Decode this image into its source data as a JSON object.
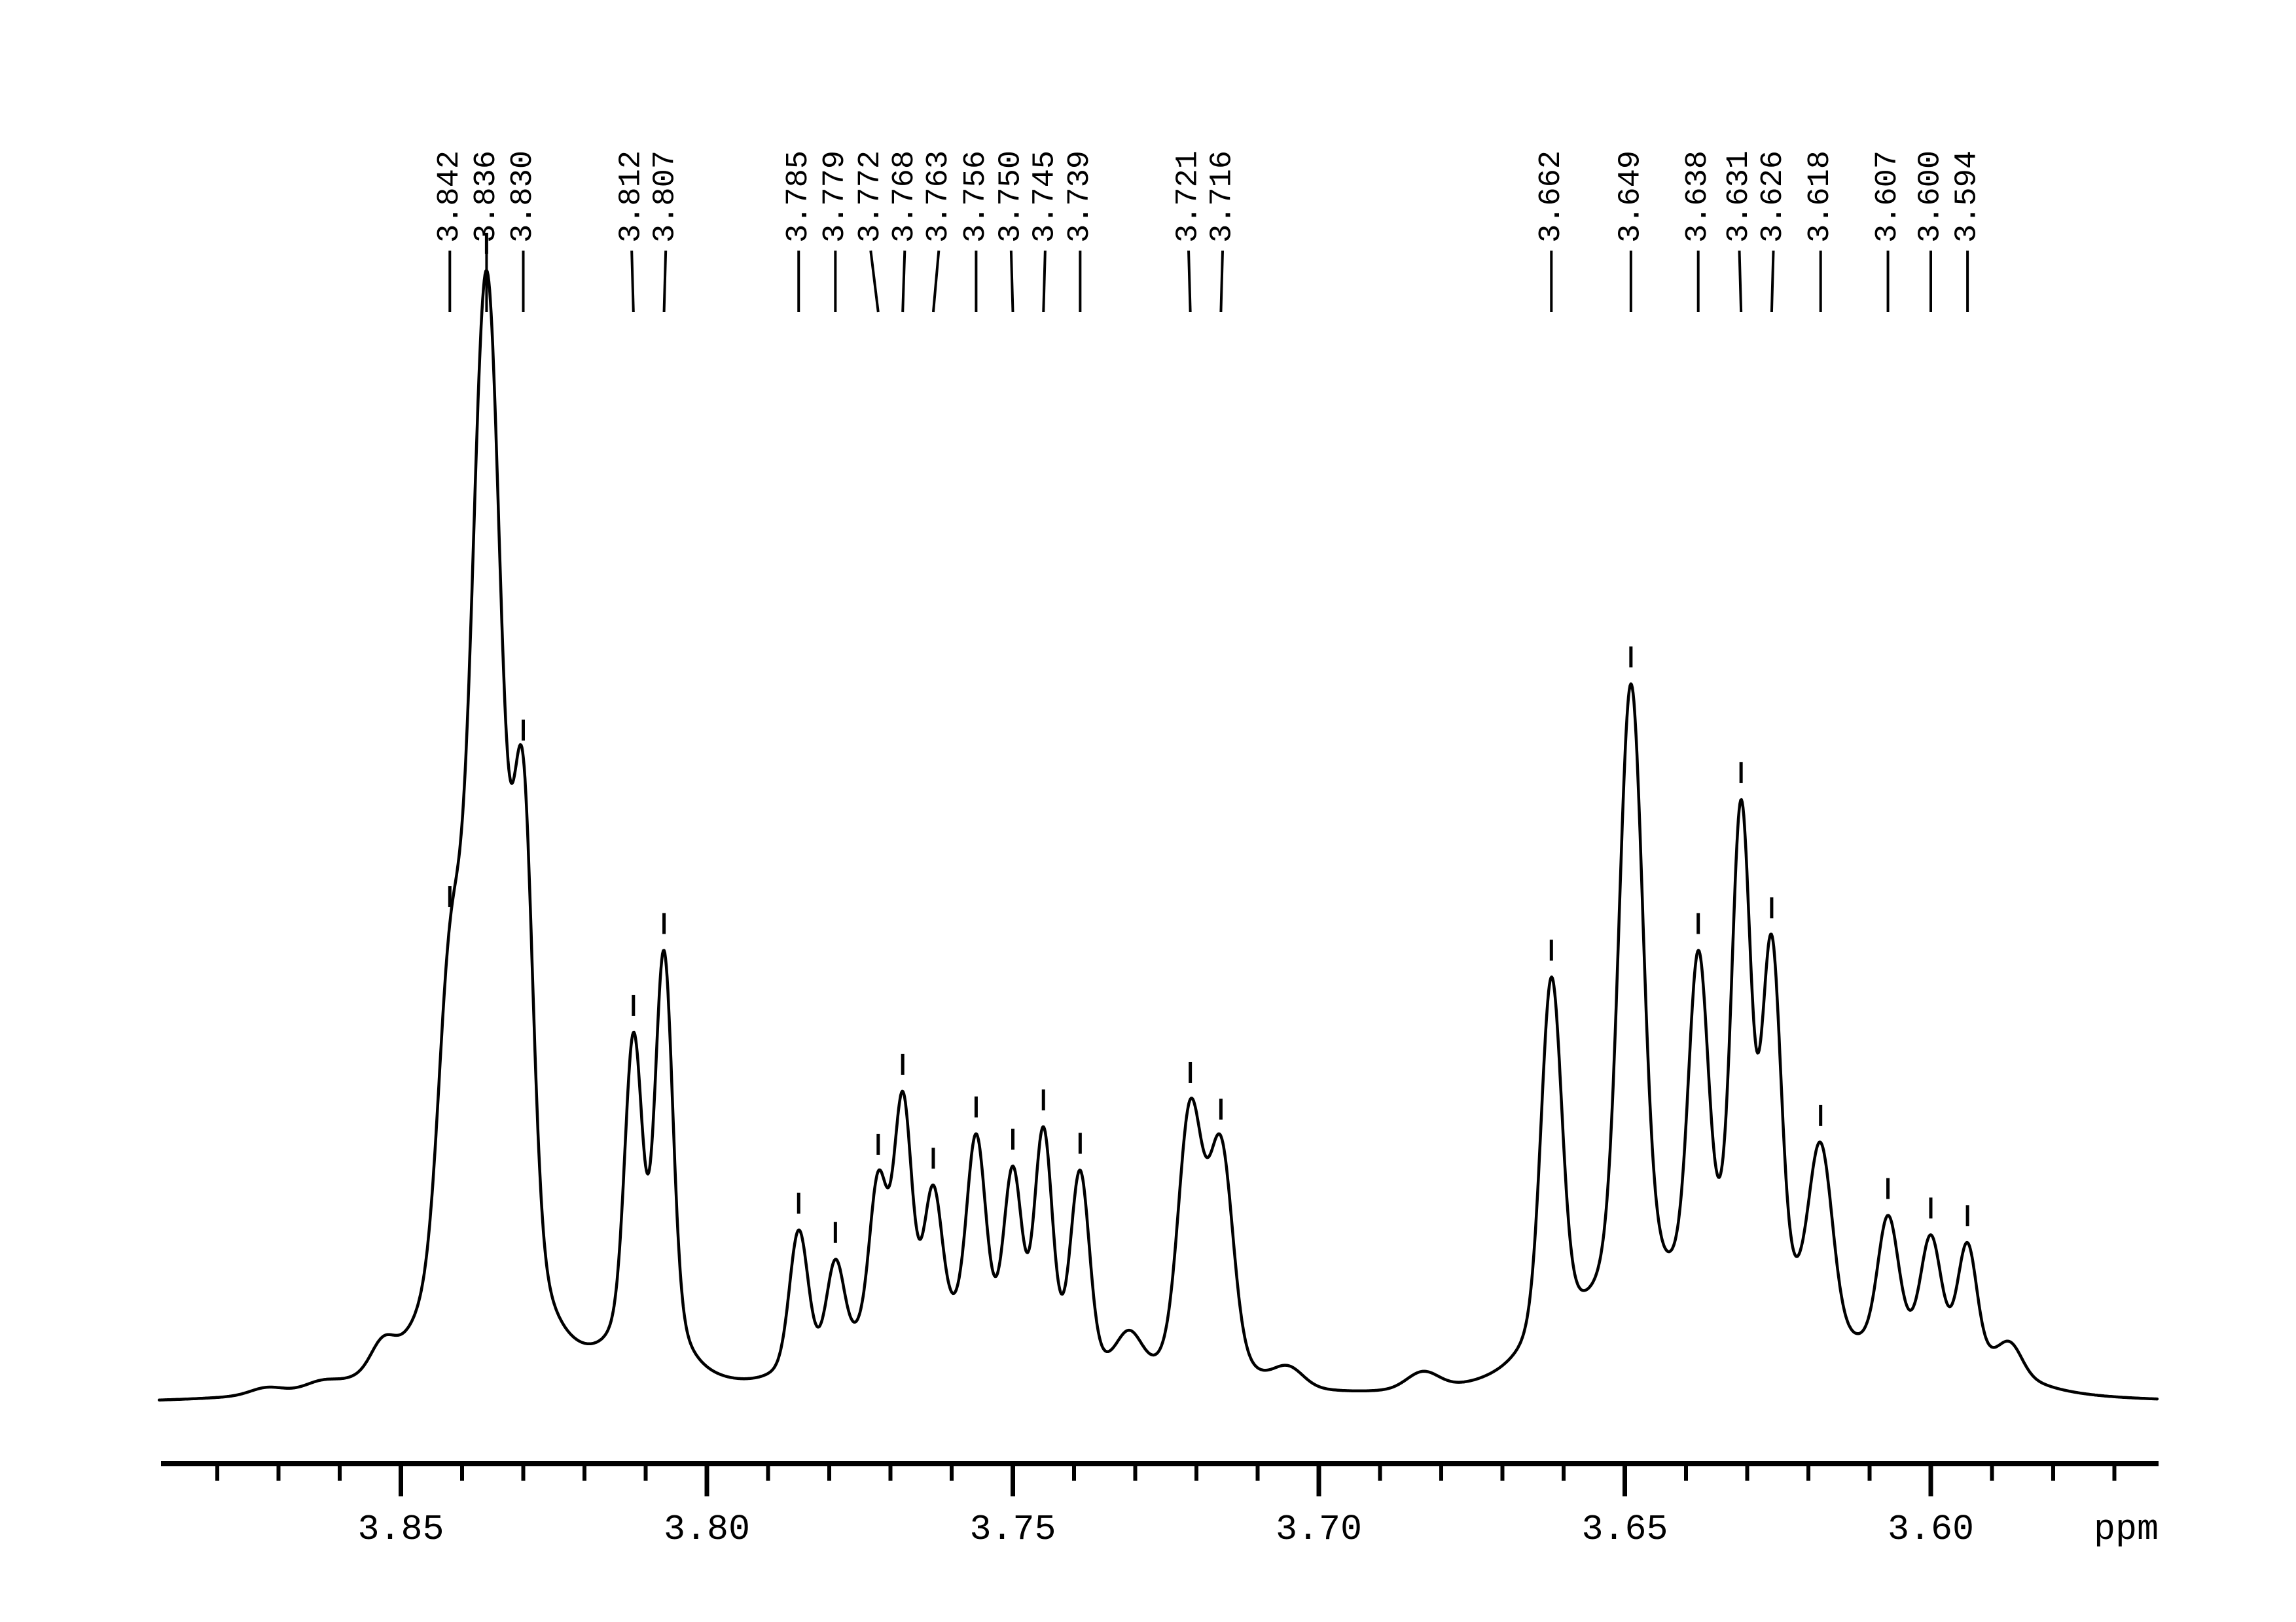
{
  "page": {
    "background": "#ffffff",
    "foreground": "#000000"
  },
  "chart_data": {
    "type": "line",
    "title": "",
    "xlabel": "ppm",
    "ylabel": "",
    "grid": false,
    "legend": null,
    "line_color": "#000000",
    "x_axis": {
      "unit": "ppm",
      "direction": "values-decrease-to-right",
      "min": 3.562,
      "max": 3.89,
      "major_ticks": [
        3.85,
        3.8,
        3.75,
        3.7,
        3.65,
        3.6
      ],
      "major_tick_labels": [
        "3.85",
        "3.80",
        "3.75",
        "3.70",
        "3.65",
        "3.60"
      ],
      "minor_tick_step": 0.01
    },
    "y_axis": {
      "shown": false,
      "range": [
        0,
        1.08
      ]
    },
    "peaks": [
      {
        "label": "3.842",
        "ppm": 3.842,
        "rel_intensity": 0.29,
        "hwhm_ppm": 0.0022
      },
      {
        "label": "3.836",
        "ppm": 3.836,
        "rel_intensity": 1.0,
        "hwhm_ppm": 0.0028
      },
      {
        "label": "3.830",
        "ppm": 3.83,
        "rel_intensity": 0.46,
        "hwhm_ppm": 0.0018
      },
      {
        "label": "3.812",
        "ppm": 3.812,
        "rel_intensity": 0.295,
        "hwhm_ppm": 0.0016
      },
      {
        "label": "3.807",
        "ppm": 3.807,
        "rel_intensity": 0.385,
        "hwhm_ppm": 0.0016
      },
      {
        "label": "3.785",
        "ppm": 3.785,
        "rel_intensity": 0.14,
        "hwhm_ppm": 0.0017
      },
      {
        "label": "3.779",
        "ppm": 3.779,
        "rel_intensity": 0.092,
        "hwhm_ppm": 0.0016
      },
      {
        "label": "3.772",
        "ppm": 3.772,
        "rel_intensity": 0.148,
        "hwhm_ppm": 0.0016
      },
      {
        "label": "3.768",
        "ppm": 3.768,
        "rel_intensity": 0.222,
        "hwhm_ppm": 0.0016
      },
      {
        "label": "3.763",
        "ppm": 3.763,
        "rel_intensity": 0.13,
        "hwhm_ppm": 0.0016
      },
      {
        "label": "3.756",
        "ppm": 3.756,
        "rel_intensity": 0.192,
        "hwhm_ppm": 0.0017
      },
      {
        "label": "3.750",
        "ppm": 3.75,
        "rel_intensity": 0.165,
        "hwhm_ppm": 0.0016
      },
      {
        "label": "3.745",
        "ppm": 3.745,
        "rel_intensity": 0.218,
        "hwhm_ppm": 0.0016
      },
      {
        "label": "3.739",
        "ppm": 3.739,
        "rel_intensity": 0.192,
        "hwhm_ppm": 0.0017
      },
      {
        "label": "3.721",
        "ppm": 3.721,
        "rel_intensity": 0.258,
        "hwhm_ppm": 0.0022
      },
      {
        "label": "3.716",
        "ppm": 3.716,
        "rel_intensity": 0.22,
        "hwhm_ppm": 0.0022
      },
      {
        "label": "3.662",
        "ppm": 3.662,
        "rel_intensity": 0.36,
        "hwhm_ppm": 0.0019
      },
      {
        "label": "3.649",
        "ppm": 3.649,
        "rel_intensity": 0.615,
        "hwhm_ppm": 0.0022
      },
      {
        "label": "3.638",
        "ppm": 3.638,
        "rel_intensity": 0.32,
        "hwhm_ppm": 0.0018
      },
      {
        "label": "3.631",
        "ppm": 3.631,
        "rel_intensity": 0.45,
        "hwhm_ppm": 0.0017
      },
      {
        "label": "3.626",
        "ppm": 3.626,
        "rel_intensity": 0.33,
        "hwhm_ppm": 0.0017
      },
      {
        "label": "3.618",
        "ppm": 3.618,
        "rel_intensity": 0.19,
        "hwhm_ppm": 0.0022
      },
      {
        "label": "3.607",
        "ppm": 3.607,
        "rel_intensity": 0.128,
        "hwhm_ppm": 0.0019
      },
      {
        "label": "3.600",
        "ppm": 3.6,
        "rel_intensity": 0.105,
        "hwhm_ppm": 0.0018
      },
      {
        "label": "3.594",
        "ppm": 3.594,
        "rel_intensity": 0.108,
        "hwhm_ppm": 0.0017
      }
    ],
    "baseline_features": [
      {
        "ppm": 3.872,
        "rel_intensity": 0.007,
        "hwhm_ppm": 0.003
      },
      {
        "ppm": 3.863,
        "rel_intensity": 0.007,
        "hwhm_ppm": 0.003
      },
      {
        "ppm": 3.853,
        "rel_intensity": 0.026,
        "hwhm_ppm": 0.0022
      },
      {
        "ppm": 3.838,
        "rel_intensity": 0.04,
        "hwhm_ppm": 0.008
      },
      {
        "ppm": 3.81,
        "rel_intensity": 0.02,
        "hwhm_ppm": 0.006
      },
      {
        "ppm": 3.771,
        "rel_intensity": 0.03,
        "hwhm_ppm": 0.009
      },
      {
        "ppm": 3.757,
        "rel_intensity": 0.035,
        "hwhm_ppm": 0.01
      },
      {
        "ppm": 3.731,
        "rel_intensity": 0.042,
        "hwhm_ppm": 0.0024
      },
      {
        "ppm": 3.705,
        "rel_intensity": 0.02,
        "hwhm_ppm": 0.0028
      },
      {
        "ppm": 3.683,
        "rel_intensity": 0.018,
        "hwhm_ppm": 0.003
      },
      {
        "ppm": 3.655,
        "rel_intensity": 0.03,
        "hwhm_ppm": 0.01
      },
      {
        "ppm": 3.64,
        "rel_intensity": 0.04,
        "hwhm_ppm": 0.012
      },
      {
        "ppm": 3.629,
        "rel_intensity": 0.05,
        "hwhm_ppm": 0.008
      },
      {
        "ppm": 3.6,
        "rel_intensity": 0.035,
        "hwhm_ppm": 0.012
      },
      {
        "ppm": 3.587,
        "rel_intensity": 0.03,
        "hwhm_ppm": 0.0022
      }
    ]
  }
}
